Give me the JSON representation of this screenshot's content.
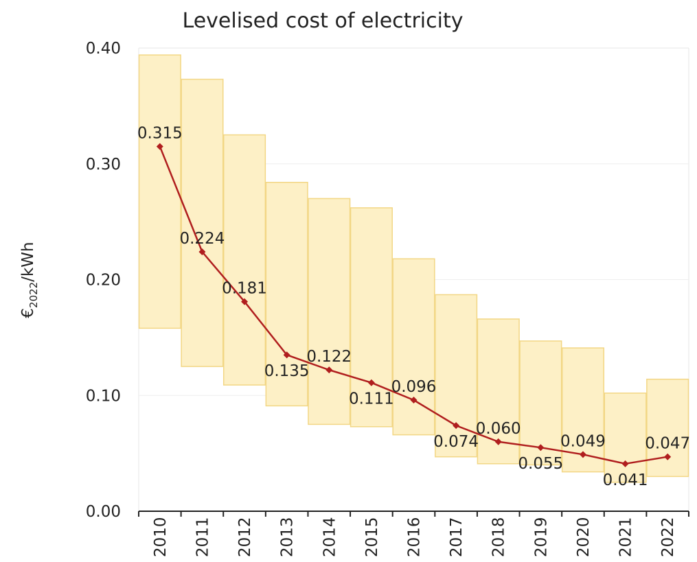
{
  "chart_data": {
    "type": "line",
    "title": "Levelised cost of electricity",
    "ylabel": "€2022/kWh",
    "ylabel_main": "€",
    "ylabel_sub": "2022",
    "ylabel_rest": "/kWh",
    "ylim": [
      0,
      0.4
    ],
    "yticks": [
      "0.00",
      "0.10",
      "0.20",
      "0.30",
      "0.40"
    ],
    "ytick_values": [
      0,
      0.1,
      0.2,
      0.3,
      0.4
    ],
    "grid": true,
    "categories": [
      "2010",
      "2011",
      "2012",
      "2013",
      "2014",
      "2015",
      "2016",
      "2017",
      "2018",
      "2019",
      "2020",
      "2021",
      "2022"
    ],
    "series": [
      {
        "type": "line",
        "values": [
          0.315,
          0.224,
          0.181,
          0.135,
          0.122,
          0.111,
          0.096,
          0.074,
          0.06,
          0.055,
          0.049,
          0.041,
          0.047
        ],
        "labels": [
          "0.315",
          "0.224",
          "0.181",
          "0.135",
          "0.122",
          "0.111",
          "0.096",
          "0.074",
          "0.060",
          "0.055",
          "0.049",
          "0.041",
          "0.047"
        ],
        "label_placement": [
          "above",
          "above",
          "above",
          "below",
          "above",
          "below",
          "above",
          "below",
          "above",
          "below",
          "above",
          "below",
          "above"
        ],
        "color": "#b01e1e"
      },
      {
        "type": "range",
        "low": [
          0.158,
          0.125,
          0.109,
          0.091,
          0.075,
          0.073,
          0.066,
          0.047,
          0.041,
          0.04,
          0.034,
          0.025,
          0.03
        ],
        "high": [
          0.394,
          0.373,
          0.325,
          0.284,
          0.27,
          0.262,
          0.218,
          0.187,
          0.166,
          0.147,
          0.141,
          0.102,
          0.114
        ],
        "fill": "#fdf0c6",
        "stroke": "#f2d684"
      }
    ]
  }
}
